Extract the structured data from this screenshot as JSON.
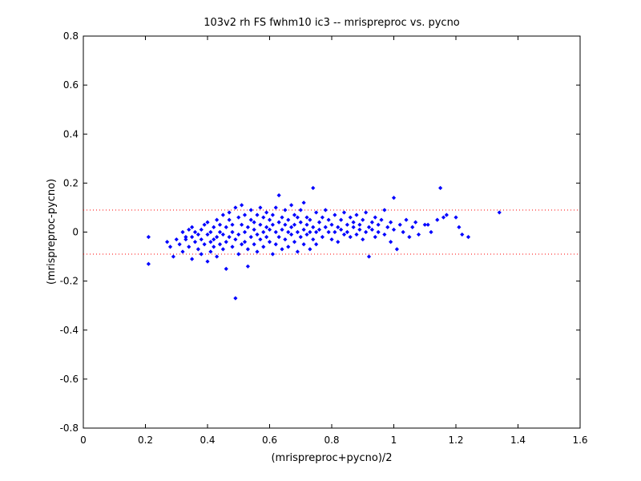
{
  "chart_data": {
    "type": "scatter",
    "title": "103v2 rh FS fwhm10 ic3 -- mrispreproc vs. pycno",
    "xlabel": "(mrispreproc+pycno)/2",
    "ylabel": "(mrispreproc-pycno)",
    "xlim": [
      0,
      1.6
    ],
    "ylim": [
      -0.8,
      0.8
    ],
    "x_ticks": [
      "0",
      "0.2",
      "0.4",
      "0.6",
      "0.8",
      "1",
      "1.2",
      "1.4",
      "1.6"
    ],
    "y_ticks": [
      "0.8",
      "0.6",
      "0.4",
      "0.2",
      "0",
      "-0.2",
      "-0.4",
      "-0.6",
      "-0.8"
    ],
    "grid": false,
    "reference_lines": [
      0.09,
      -0.09
    ],
    "marker_color": "#0000ff",
    "reference_line_color": "#ff0000",
    "series": [
      {
        "points": [
          [
            0.21,
            -0.02
          ],
          [
            0.21,
            -0.13
          ],
          [
            0.27,
            -0.04
          ],
          [
            0.28,
            -0.06
          ],
          [
            0.29,
            -0.1
          ],
          [
            0.3,
            -0.03
          ],
          [
            0.31,
            -0.05
          ],
          [
            0.32,
            0.0
          ],
          [
            0.32,
            -0.08
          ],
          [
            0.33,
            -0.02
          ],
          [
            0.33,
            -0.03
          ],
          [
            0.34,
            0.01
          ],
          [
            0.34,
            -0.06
          ],
          [
            0.35,
            -0.02
          ],
          [
            0.35,
            0.02
          ],
          [
            0.35,
            -0.11
          ],
          [
            0.36,
            0.0
          ],
          [
            0.36,
            -0.04
          ],
          [
            0.37,
            -0.01
          ],
          [
            0.37,
            -0.07
          ],
          [
            0.38,
            -0.03
          ],
          [
            0.38,
            0.01
          ],
          [
            0.38,
            -0.09
          ],
          [
            0.39,
            0.03
          ],
          [
            0.39,
            -0.05
          ],
          [
            0.4,
            -0.01
          ],
          [
            0.4,
            0.04
          ],
          [
            0.4,
            -0.12
          ],
          [
            0.41,
            -0.04
          ],
          [
            0.41,
            0.0
          ],
          [
            0.41,
            -0.08
          ],
          [
            0.42,
            0.02
          ],
          [
            0.42,
            -0.03
          ],
          [
            0.42,
            -0.06
          ],
          [
            0.43,
            0.05
          ],
          [
            0.43,
            -0.02
          ],
          [
            0.43,
            -0.1
          ],
          [
            0.44,
            0.0
          ],
          [
            0.44,
            -0.05
          ],
          [
            0.44,
            0.03
          ],
          [
            0.45,
            0.07
          ],
          [
            0.45,
            -0.01
          ],
          [
            0.45,
            -0.07
          ],
          [
            0.46,
            0.02
          ],
          [
            0.46,
            -0.04
          ],
          [
            0.46,
            -0.15
          ],
          [
            0.47,
            0.05
          ],
          [
            0.47,
            -0.02
          ],
          [
            0.47,
            0.08
          ],
          [
            0.48,
            0.0
          ],
          [
            0.48,
            -0.06
          ],
          [
            0.48,
            0.03
          ],
          [
            0.49,
            -0.27
          ],
          [
            0.49,
            0.1
          ],
          [
            0.49,
            -0.03
          ],
          [
            0.5,
            0.06
          ],
          [
            0.5,
            -0.01
          ],
          [
            0.5,
            -0.09
          ],
          [
            0.51,
            0.03
          ],
          [
            0.51,
            -0.05
          ],
          [
            0.51,
            0.11
          ],
          [
            0.52,
            0.0
          ],
          [
            0.52,
            -0.04
          ],
          [
            0.52,
            0.07
          ],
          [
            0.53,
            0.02
          ],
          [
            0.53,
            -0.07
          ],
          [
            0.53,
            -0.14
          ],
          [
            0.54,
            0.05
          ],
          [
            0.54,
            -0.02
          ],
          [
            0.54,
            0.09
          ],
          [
            0.55,
            0.01
          ],
          [
            0.55,
            -0.05
          ],
          [
            0.55,
            0.04
          ],
          [
            0.56,
            0.07
          ],
          [
            0.56,
            -0.01
          ],
          [
            0.56,
            -0.08
          ],
          [
            0.57,
            0.03
          ],
          [
            0.57,
            -0.03
          ],
          [
            0.57,
            0.1
          ],
          [
            0.58,
            0.0
          ],
          [
            0.58,
            0.06
          ],
          [
            0.58,
            -0.06
          ],
          [
            0.59,
            0.02
          ],
          [
            0.59,
            -0.02
          ],
          [
            0.59,
            0.08
          ],
          [
            0.6,
            0.05
          ],
          [
            0.6,
            -0.04
          ],
          [
            0.6,
            0.01
          ],
          [
            0.61,
            0.07
          ],
          [
            0.61,
            -0.09
          ],
          [
            0.61,
            0.03
          ],
          [
            0.62,
            0.0
          ],
          [
            0.62,
            0.1
          ],
          [
            0.62,
            -0.05
          ],
          [
            0.63,
            0.04
          ],
          [
            0.63,
            -0.02
          ],
          [
            0.63,
            0.15
          ],
          [
            0.64,
            0.06
          ],
          [
            0.64,
            -0.07
          ],
          [
            0.64,
            0.01
          ],
          [
            0.65,
            0.03
          ],
          [
            0.65,
            -0.03
          ],
          [
            0.65,
            0.09
          ],
          [
            0.66,
            0.0
          ],
          [
            0.66,
            0.05
          ],
          [
            0.66,
            -0.06
          ],
          [
            0.67,
            0.02
          ],
          [
            0.67,
            0.11
          ],
          [
            0.67,
            -0.01
          ],
          [
            0.68,
            0.07
          ],
          [
            0.68,
            -0.04
          ],
          [
            0.68,
            0.03
          ],
          [
            0.69,
            0.0
          ],
          [
            0.69,
            0.06
          ],
          [
            0.69,
            -0.08
          ],
          [
            0.7,
            0.04
          ],
          [
            0.7,
            -0.02
          ],
          [
            0.7,
            0.09
          ],
          [
            0.71,
            0.01
          ],
          [
            0.71,
            -0.05
          ],
          [
            0.71,
            0.12
          ],
          [
            0.72,
            0.03
          ],
          [
            0.72,
            -0.01
          ],
          [
            0.72,
            0.06
          ],
          [
            0.73,
            0.0
          ],
          [
            0.73,
            -0.07
          ],
          [
            0.73,
            0.05
          ],
          [
            0.74,
            0.18
          ],
          [
            0.74,
            0.02
          ],
          [
            0.74,
            -0.03
          ],
          [
            0.75,
            0.08
          ],
          [
            0.75,
            0.0
          ],
          [
            0.75,
            -0.05
          ],
          [
            0.76,
            0.04
          ],
          [
            0.76,
            0.01
          ],
          [
            0.77,
            0.06
          ],
          [
            0.77,
            -0.02
          ],
          [
            0.78,
            0.09
          ],
          [
            0.78,
            0.02
          ],
          [
            0.79,
            0.0
          ],
          [
            0.79,
            0.05
          ],
          [
            0.8,
            -0.03
          ],
          [
            0.8,
            0.03
          ],
          [
            0.81,
            0.07
          ],
          [
            0.81,
            0.0
          ],
          [
            0.82,
            0.02
          ],
          [
            0.82,
            -0.04
          ],
          [
            0.83,
            0.05
          ],
          [
            0.83,
            0.01
          ],
          [
            0.84,
            0.08
          ],
          [
            0.84,
            -0.01
          ],
          [
            0.85,
            0.03
          ],
          [
            0.85,
            0.0
          ],
          [
            0.86,
            0.06
          ],
          [
            0.86,
            -0.02
          ],
          [
            0.87,
            0.02
          ],
          [
            0.87,
            0.04
          ],
          [
            0.88,
            -0.01
          ],
          [
            0.88,
            0.07
          ],
          [
            0.89,
            0.01
          ],
          [
            0.89,
            0.03
          ],
          [
            0.9,
            -0.03
          ],
          [
            0.9,
            0.05
          ],
          [
            0.91,
            0.0
          ],
          [
            0.91,
            0.08
          ],
          [
            0.92,
            0.02
          ],
          [
            0.92,
            -0.1
          ],
          [
            0.93,
            0.04
          ],
          [
            0.93,
            0.01
          ],
          [
            0.94,
            -0.02
          ],
          [
            0.94,
            0.06
          ],
          [
            0.95,
            0.03
          ],
          [
            0.95,
            0.0
          ],
          [
            0.96,
            0.05
          ],
          [
            0.97,
            -0.01
          ],
          [
            0.97,
            0.09
          ],
          [
            0.98,
            0.02
          ],
          [
            0.99,
            0.04
          ],
          [
            0.99,
            -0.04
          ],
          [
            1.0,
            0.14
          ],
          [
            1.0,
            0.01
          ],
          [
            1.01,
            -0.07
          ],
          [
            1.02,
            0.03
          ],
          [
            1.03,
            0.0
          ],
          [
            1.04,
            0.05
          ],
          [
            1.05,
            -0.02
          ],
          [
            1.06,
            0.02
          ],
          [
            1.07,
            0.04
          ],
          [
            1.08,
            -0.01
          ],
          [
            1.1,
            0.03
          ],
          [
            1.11,
            0.03
          ],
          [
            1.12,
            0.0
          ],
          [
            1.14,
            0.05
          ],
          [
            1.15,
            0.18
          ],
          [
            1.16,
            0.06
          ],
          [
            1.17,
            0.07
          ],
          [
            1.2,
            0.06
          ],
          [
            1.21,
            0.02
          ],
          [
            1.22,
            -0.01
          ],
          [
            1.24,
            -0.02
          ],
          [
            1.34,
            0.08
          ]
        ]
      }
    ]
  }
}
